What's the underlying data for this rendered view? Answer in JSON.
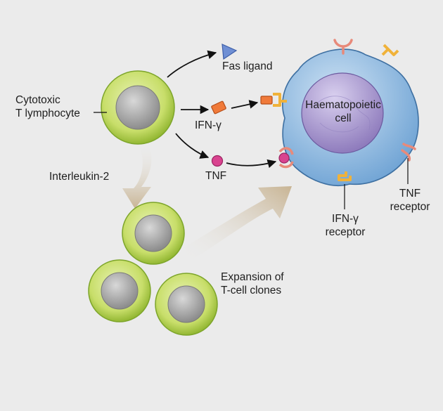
{
  "labels": {
    "ctl_line1": "Cytotoxic",
    "ctl_line2": "T lymphocyte",
    "fas_ligand": "Fas ligand",
    "ifn": "IFN-γ",
    "tnf": "TNF",
    "interleukin": "Interleukin-2",
    "haematopoietic_line1": "Haematopoietic",
    "haematopoietic_line2": "cell",
    "ifn_receptor_line1": "IFN-γ",
    "ifn_receptor_line2": "receptor",
    "tnf_receptor_line1": "TNF",
    "tnf_receptor_line2": "receptor",
    "expansion_line1": "Expansion of",
    "expansion_line2": "T-cell clones"
  },
  "colors": {
    "background": "#ebebeb",
    "t_cell_ring": "#9bc53d",
    "t_cell_nucleus": "#9a9a9a",
    "haematopoietic_cytoplasm": "#7fb1dc",
    "haematopoietic_nucleus": "#9b88c4",
    "fas_ligand": "#6f8fd4",
    "ifn_gamma": "#f07a3a",
    "tnf": "#d9438f",
    "ifn_receptor": "#f0b23a",
    "tnf_receptor": "#e88a7a"
  }
}
